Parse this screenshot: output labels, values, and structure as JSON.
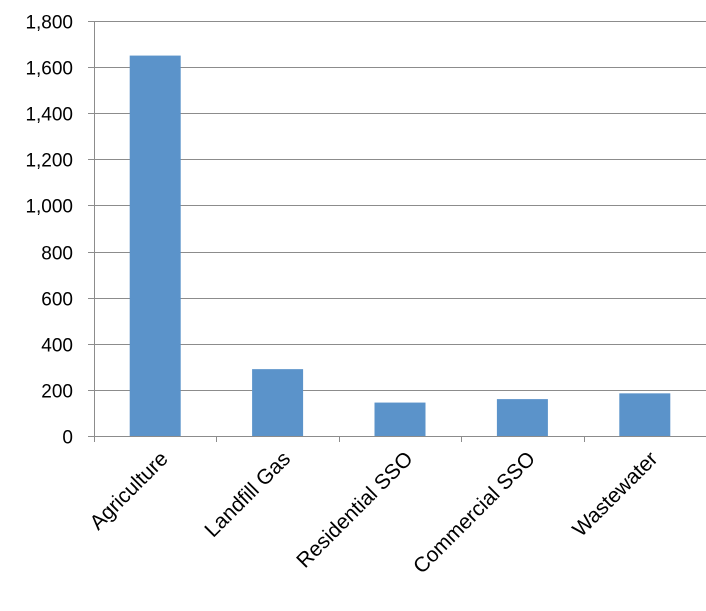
{
  "chart_data": {
    "type": "bar",
    "title": "",
    "xlabel": "",
    "ylabel": "",
    "categories": [
      "Agriculture",
      "Landfill Gas",
      "Residential SSO",
      "Commercial SSO",
      "Wastewater"
    ],
    "values": [
      1650,
      290,
      145,
      160,
      185
    ],
    "ylim": [
      0,
      1800
    ],
    "yticks": [
      0,
      200,
      400,
      600,
      800,
      1000,
      1200,
      1400,
      1600,
      1800
    ],
    "ytick_labels": [
      "0",
      "200",
      "400",
      "600",
      "800",
      "1,000",
      "1,200",
      "1,400",
      "1,600",
      "1,800"
    ],
    "grid": "horizontal",
    "legend": "none",
    "colors": {
      "bar": "#5b93ca",
      "grid": "#8c8c8c",
      "axis": "#8c8c8c",
      "text": "#000000"
    }
  }
}
